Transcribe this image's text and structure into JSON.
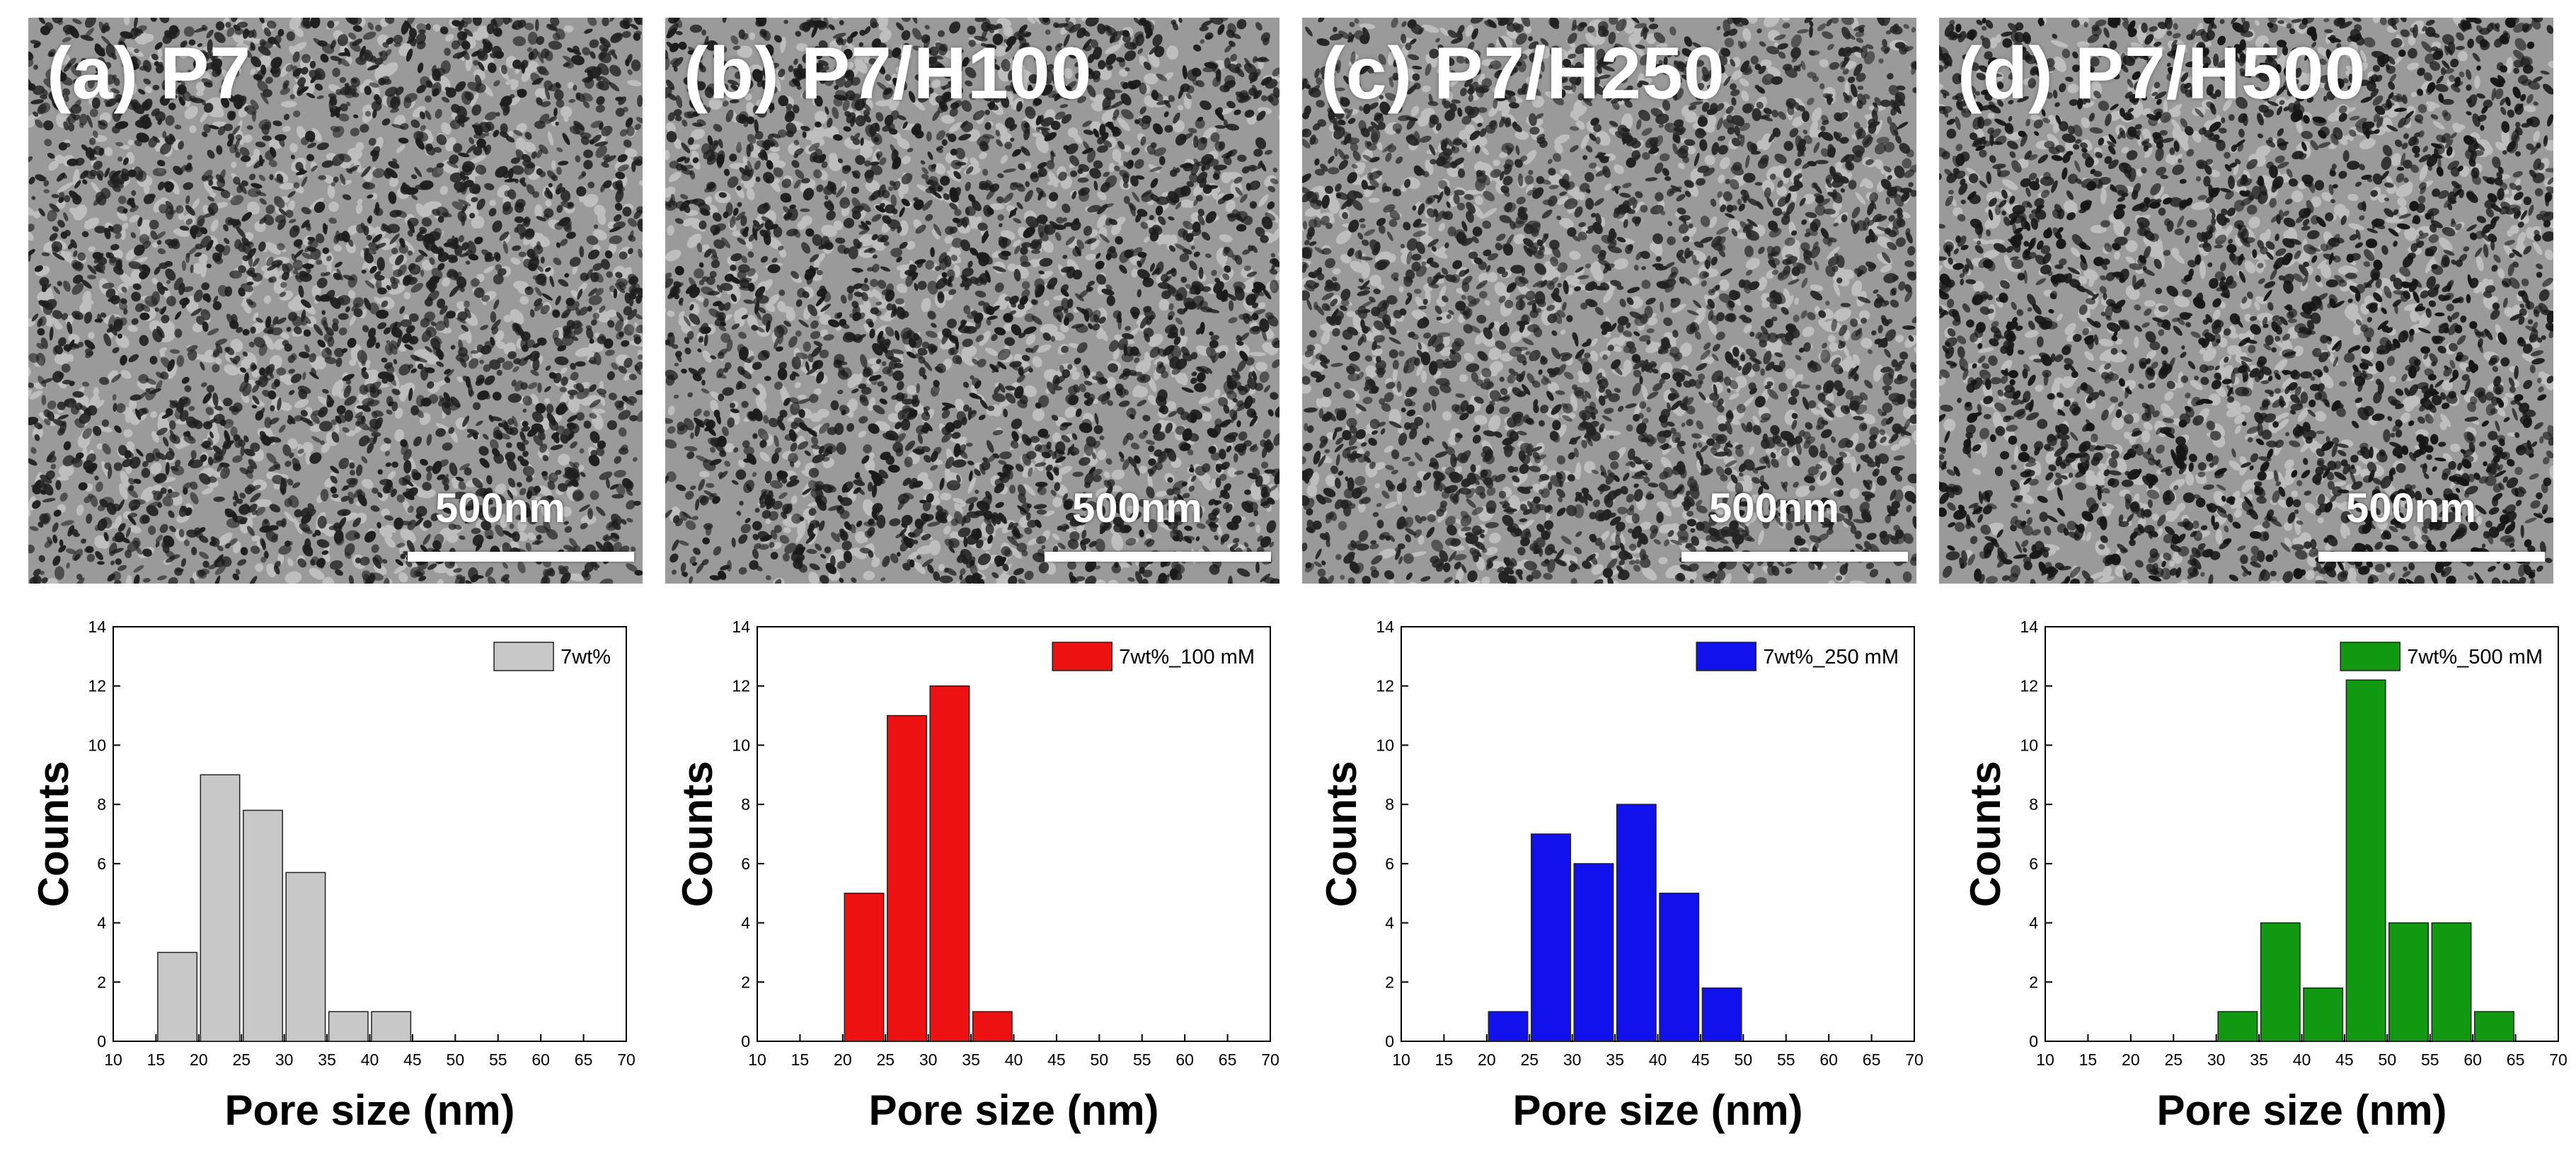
{
  "panels": [
    {
      "label": "(a) P7",
      "scalebar": "500nm",
      "texture_seed": 11,
      "texture_dark": "#1e1e1e"
    },
    {
      "label": "(b) P7/H100",
      "scalebar": "500nm",
      "texture_seed": 29,
      "texture_dark": "#1b1b1b"
    },
    {
      "label": "(c) P7/H250",
      "scalebar": "500nm",
      "texture_seed": 47,
      "texture_dark": "#222222"
    },
    {
      "label": "(d) P7/H500",
      "scalebar": "500nm",
      "texture_seed": 83,
      "texture_dark": "#161616"
    }
  ],
  "chart_data": [
    {
      "type": "bar",
      "title": "",
      "xlabel": "Pore size (nm)",
      "ylabel": "Counts",
      "xlim": [
        10,
        70
      ],
      "ylim": [
        0,
        14
      ],
      "xticks": [
        "10",
        "15",
        "20",
        "25",
        "30",
        "35",
        "40",
        "45",
        "50",
        "55",
        "60",
        "65",
        "70"
      ],
      "yticks": [
        "0",
        "2",
        "4",
        "6",
        "8",
        "10",
        "12",
        "14"
      ],
      "bin_width": 5,
      "legend": "7wt%",
      "color": "#c8c8c8",
      "legend_position": "top-right",
      "bins": [
        17.5,
        22.5,
        27.5,
        32.5,
        37.5,
        42.5
      ],
      "values": [
        3,
        9,
        7.8,
        5.7,
        1,
        1
      ]
    },
    {
      "type": "bar",
      "title": "",
      "xlabel": "Pore size (nm)",
      "ylabel": "Counts",
      "xlim": [
        10,
        70
      ],
      "ylim": [
        0,
        14
      ],
      "xticks": [
        "10",
        "15",
        "20",
        "25",
        "30",
        "35",
        "40",
        "45",
        "50",
        "55",
        "60",
        "65",
        "70"
      ],
      "yticks": [
        "0",
        "2",
        "4",
        "6",
        "8",
        "10",
        "12",
        "14"
      ],
      "bin_width": 5,
      "legend": "7wt%_100 mM",
      "color": "#ee1111",
      "legend_position": "top-right",
      "bins": [
        22.5,
        27.5,
        32.5,
        37.5
      ],
      "values": [
        5,
        11,
        12,
        1
      ]
    },
    {
      "type": "bar",
      "title": "",
      "xlabel": "Pore size (nm)",
      "ylabel": "Counts",
      "xlim": [
        10,
        70
      ],
      "ylim": [
        0,
        14
      ],
      "xticks": [
        "10",
        "15",
        "20",
        "25",
        "30",
        "35",
        "40",
        "45",
        "50",
        "55",
        "60",
        "65",
        "70"
      ],
      "yticks": [
        "0",
        "2",
        "4",
        "6",
        "8",
        "10",
        "12",
        "14"
      ],
      "bin_width": 5,
      "legend": "7wt%_250 mM",
      "color": "#1111ee",
      "legend_position": "top-right",
      "bins": [
        22.5,
        27.5,
        32.5,
        37.5,
        42.5,
        47.5
      ],
      "values": [
        1,
        7,
        6,
        8,
        5,
        1.8
      ]
    },
    {
      "type": "bar",
      "title": "",
      "xlabel": "Pore size (nm)",
      "ylabel": "Counts",
      "xlim": [
        10,
        70
      ],
      "ylim": [
        0,
        14
      ],
      "xticks": [
        "10",
        "15",
        "20",
        "25",
        "30",
        "35",
        "40",
        "45",
        "50",
        "55",
        "60",
        "65",
        "70"
      ],
      "yticks": [
        "0",
        "2",
        "4",
        "6",
        "8",
        "10",
        "12",
        "14"
      ],
      "bin_width": 5,
      "legend": "7wt%_500 mM",
      "color": "#119911",
      "legend_position": "top-right",
      "bins": [
        32.5,
        37.5,
        42.5,
        47.5,
        52.5,
        57.5,
        62.5
      ],
      "values": [
        1,
        4,
        1.8,
        12.2,
        4,
        4,
        1
      ]
    }
  ]
}
